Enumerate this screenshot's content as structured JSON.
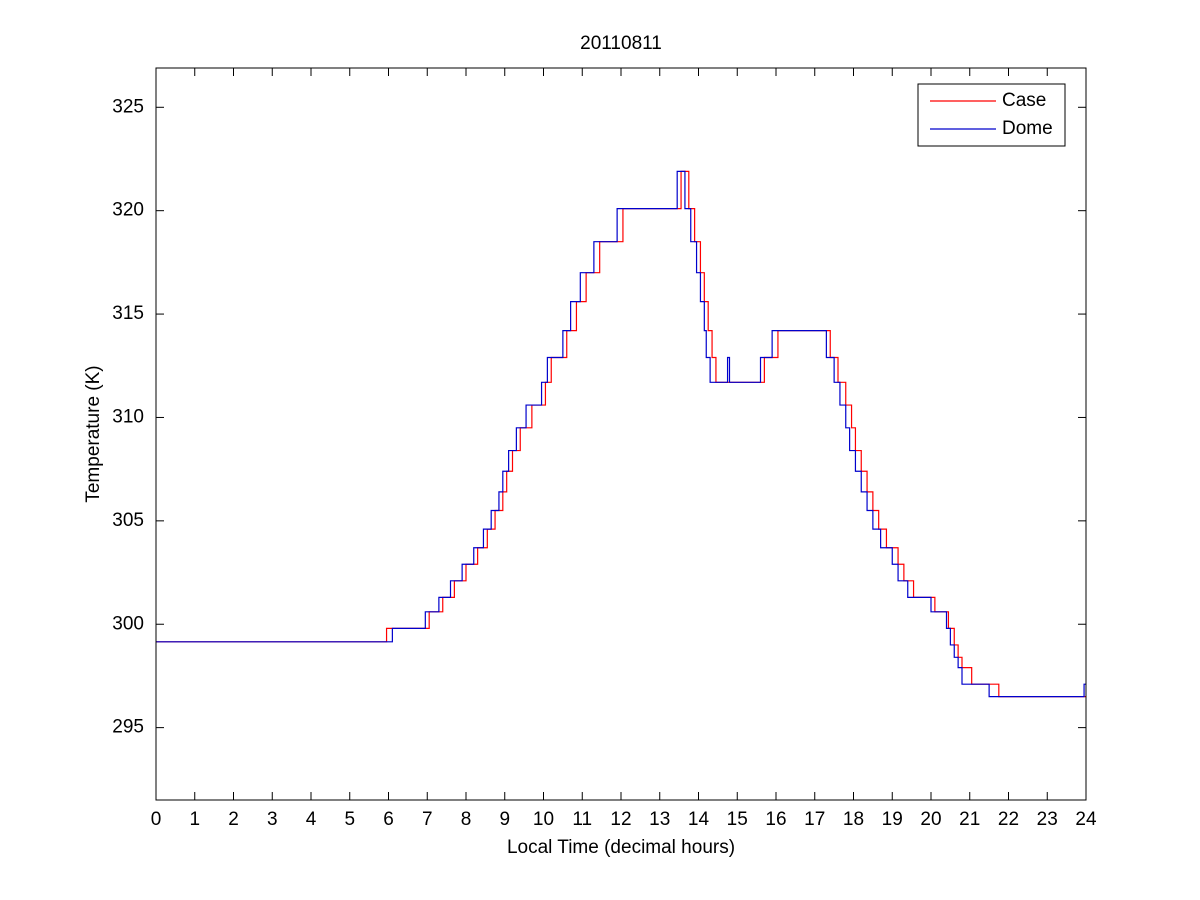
{
  "chart_data": {
    "type": "line",
    "drawstyle": "steps-post",
    "title": "20110811",
    "x_label": "Local Time (decimal hours)",
    "y_label": "Temperature (K)",
    "xlim": [
      0,
      24
    ],
    "ylim": [
      291.5,
      326.9
    ],
    "xticks": [
      0,
      1,
      2,
      3,
      4,
      5,
      6,
      7,
      8,
      9,
      10,
      11,
      12,
      13,
      14,
      15,
      16,
      17,
      18,
      19,
      20,
      21,
      22,
      23,
      24
    ],
    "yticks": [
      295,
      300,
      305,
      310,
      315,
      320,
      325
    ],
    "grid": false,
    "legend": "upper right",
    "series": [
      {
        "name": "Case",
        "color": "#ff0000",
        "x": [
          0,
          5.95,
          7.05,
          7.4,
          7.7,
          8.0,
          8.3,
          8.55,
          8.75,
          8.95,
          9.05,
          9.2,
          9.4,
          9.7,
          10.05,
          10.2,
          10.6,
          10.85,
          11.1,
          11.45,
          12.05,
          13.55,
          13.75,
          13.9,
          14.05,
          14.15,
          14.25,
          14.35,
          14.45,
          15.7,
          16.05,
          17.4,
          17.6,
          17.8,
          17.95,
          18.05,
          18.2,
          18.35,
          18.5,
          18.65,
          18.85,
          19.15,
          19.3,
          19.55,
          20.1,
          20.45,
          20.6,
          20.7,
          20.8,
          21.05,
          21.75,
          24
        ],
        "values": [
          299.15,
          299.8,
          300.6,
          301.3,
          302.1,
          302.9,
          303.7,
          304.6,
          305.5,
          306.4,
          307.4,
          308.4,
          309.5,
          310.6,
          311.7,
          312.9,
          314.2,
          315.6,
          317.0,
          318.5,
          320.1,
          321.9,
          320.1,
          318.5,
          317.0,
          315.6,
          314.2,
          312.9,
          311.7,
          312.9,
          314.2,
          312.9,
          311.7,
          310.6,
          309.5,
          308.4,
          307.4,
          306.4,
          305.5,
          304.6,
          303.7,
          302.9,
          302.1,
          301.3,
          300.6,
          299.8,
          299.0,
          298.4,
          297.9,
          297.1,
          296.5,
          296.5
        ]
      },
      {
        "name": "Dome",
        "color": "#0000cc",
        "x": [
          0,
          6.1,
          6.95,
          7.3,
          7.6,
          7.9,
          8.2,
          8.45,
          8.65,
          8.85,
          8.95,
          9.1,
          9.3,
          9.55,
          9.95,
          10.1,
          10.5,
          10.7,
          10.95,
          11.3,
          11.9,
          13.45,
          13.65,
          13.8,
          13.95,
          14.05,
          14.15,
          14.2,
          14.3,
          14.75,
          14.8,
          15.6,
          15.9,
          17.3,
          17.5,
          17.65,
          17.8,
          17.9,
          18.05,
          18.2,
          18.35,
          18.5,
          18.7,
          19.0,
          19.15,
          19.4,
          20.0,
          20.4,
          20.5,
          20.6,
          20.7,
          20.8,
          21.5,
          23.95,
          24
        ],
        "values": [
          299.15,
          299.8,
          300.6,
          301.3,
          302.1,
          302.9,
          303.7,
          304.6,
          305.5,
          306.4,
          307.4,
          308.4,
          309.5,
          310.6,
          311.7,
          312.9,
          314.2,
          315.6,
          317.0,
          318.5,
          320.1,
          321.9,
          320.1,
          318.5,
          317.0,
          315.6,
          314.2,
          312.9,
          311.7,
          312.9,
          311.7,
          312.9,
          314.2,
          312.9,
          311.7,
          310.6,
          309.5,
          308.4,
          307.4,
          306.4,
          305.5,
          304.6,
          303.7,
          302.9,
          302.1,
          301.3,
          300.6,
          299.8,
          299.0,
          298.4,
          297.9,
          297.1,
          296.5,
          297.1,
          297.1
        ]
      }
    ]
  }
}
